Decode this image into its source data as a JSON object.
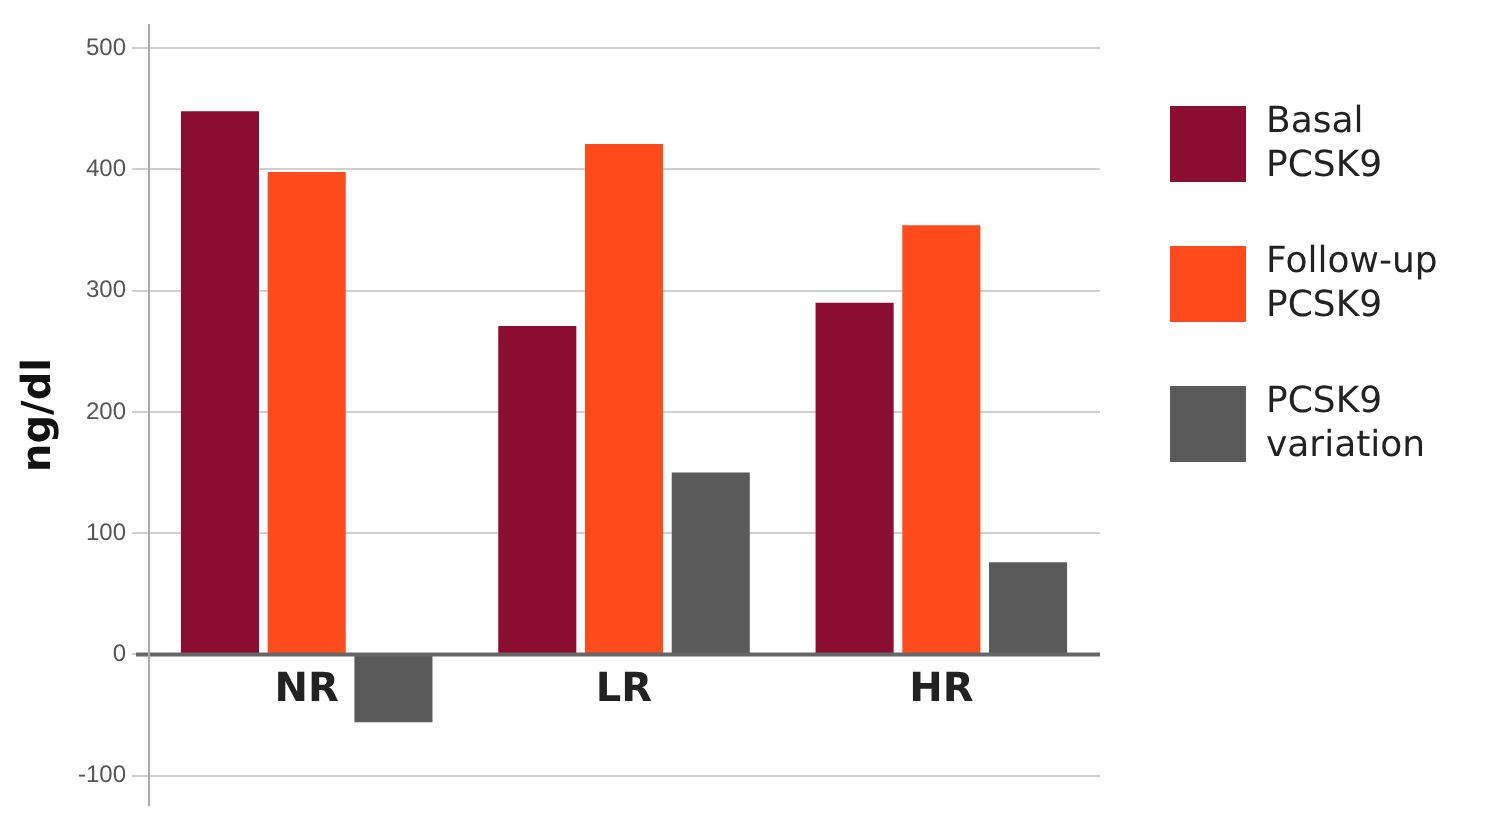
{
  "chart_data": {
    "type": "bar",
    "ylabel": "ng/dl",
    "categories": [
      "NR",
      "LR",
      "HR"
    ],
    "series": [
      {
        "name": "Basal PCSK9",
        "color": "#8b0e32",
        "values": [
          448,
          271,
          290
        ]
      },
      {
        "name": "Follow-up PCSK9",
        "color": "#ff4a1c",
        "values": [
          398,
          421,
          354
        ]
      },
      {
        "name": "PCSK9 variation",
        "color": "#5a5a5a",
        "values": [
          -56,
          150,
          76
        ]
      }
    ],
    "ylim": [
      -125,
      520
    ],
    "yticks": [
      -100,
      0,
      100,
      200,
      300,
      400,
      500
    ],
    "grid": "y",
    "legend": "right"
  }
}
